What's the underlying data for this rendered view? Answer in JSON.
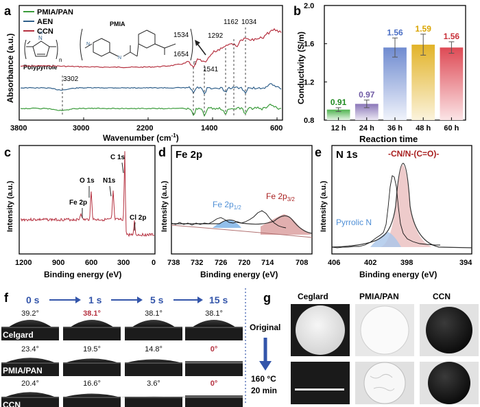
{
  "colors": {
    "green": "#3a9b3a",
    "blue": "#2f5f8a",
    "red": "#b5303f",
    "dark": "#222222",
    "bar12": "#4fb34f",
    "bar24": "#8a76b8",
    "bar36": "#6f8bd0",
    "bar48": "#e2b328",
    "bar60": "#de4a55",
    "lab12": "#1f8a1f",
    "lab24": "#6f5aa4",
    "lab36": "#4c6fc4",
    "lab48": "#d9a400",
    "lab60": "#c83039",
    "fe12": "#4f8fd6",
    "ferose": "#c97a7a",
    "n1blue": "#4f8fd6",
    "n1red": "#a81e1e",
    "arrow": "#3355aa"
  },
  "panels": {
    "a": "a",
    "b": "b",
    "c": "c",
    "d": "d",
    "e": "e",
    "f": "f",
    "g": "g"
  },
  "panel_a": {
    "legend": [
      "PMIA/PAN",
      "AEN",
      "CCN"
    ],
    "pmia_label": "PMIA",
    "ppy_label": "Polypyrrole",
    "n_sub": "n",
    "peaks": {
      "p3302": "3302",
      "p1534": "1534",
      "p1654": "1654",
      "p1541": "1541",
      "p1292": "1292",
      "p1162": "1162",
      "p1034": "1034"
    },
    "xlabel_main": "Wavenumber (cm",
    "xlabel_sup": "-1",
    "xlabel_end": ")",
    "ylabel": "Absorbance (a.u.)",
    "xticks": [
      "3800",
      "3000",
      "2200",
      "1400",
      "600"
    ]
  },
  "chart_data": [
    {
      "type": "bar",
      "title": "",
      "categories": [
        "12 h",
        "24 h",
        "36 h",
        "48 h",
        "60 h"
      ],
      "values": [
        0.91,
        0.97,
        1.56,
        1.59,
        1.56
      ],
      "value_labels": [
        "0.91",
        "0.97",
        "1.56",
        "1.59",
        "1.56"
      ],
      "errors": [
        0.02,
        0.04,
        0.1,
        0.11,
        0.06
      ],
      "xlabel": "Reaction time",
      "ylabel": "Conductivity (S/m)",
      "ylim": [
        0.8,
        2.0
      ],
      "yticks": [
        "0.8",
        "1.2",
        "1.6",
        "2.0"
      ]
    }
  ],
  "panel_c": {
    "xlabel": "Binding energy (eV)",
    "ylabel": "Intensity (a.u.)",
    "xticks": [
      "1200",
      "900",
      "600",
      "300",
      "0"
    ],
    "labels": {
      "c1s": "C 1s",
      "o1s": "O 1s",
      "n1s": "N1s",
      "fe2p": "Fe 2p",
      "cl2p": "Cl 2p"
    }
  },
  "panel_d": {
    "title": "Fe 2p",
    "xlabel": "Binding energy (eV)",
    "ylabel": "Intensity (a.u.)",
    "xticks": [
      "738",
      "732",
      "726",
      "720",
      "714",
      "708"
    ],
    "fe12_main": "Fe 2p",
    "fe12_sub": "1/2",
    "fe32_main": "Fe 2p",
    "fe32_sub": "3/2"
  },
  "panel_e": {
    "title": "N 1s",
    "xlabel": "Binding energy (eV)",
    "ylabel": "Intensity (a.u.)",
    "xticks": [
      "406",
      "402",
      "398",
      "394"
    ],
    "pyrrolic": "Pyrrolic N",
    "cn": "-CN/N-(C=O)-"
  },
  "panel_f": {
    "times": [
      "0 s",
      "1 s",
      "5 s",
      "15 s"
    ],
    "rows": [
      {
        "name": "Celgard",
        "angles": [
          "39.2°",
          "38.1°",
          "38.1°",
          "38.1°"
        ]
      },
      {
        "name": "PMIA/PAN",
        "angles": [
          "23.4°",
          "19.5°",
          "14.8°",
          "0°"
        ]
      },
      {
        "name": "CCN",
        "angles": [
          "20.4°",
          "16.6°",
          "3.6°",
          "0°"
        ]
      }
    ]
  },
  "panel_g": {
    "headers": [
      "Ceglard",
      "PMIA/PAN",
      "CCN"
    ],
    "original": "Original",
    "temp": "160 °C",
    "time": "20 min"
  }
}
